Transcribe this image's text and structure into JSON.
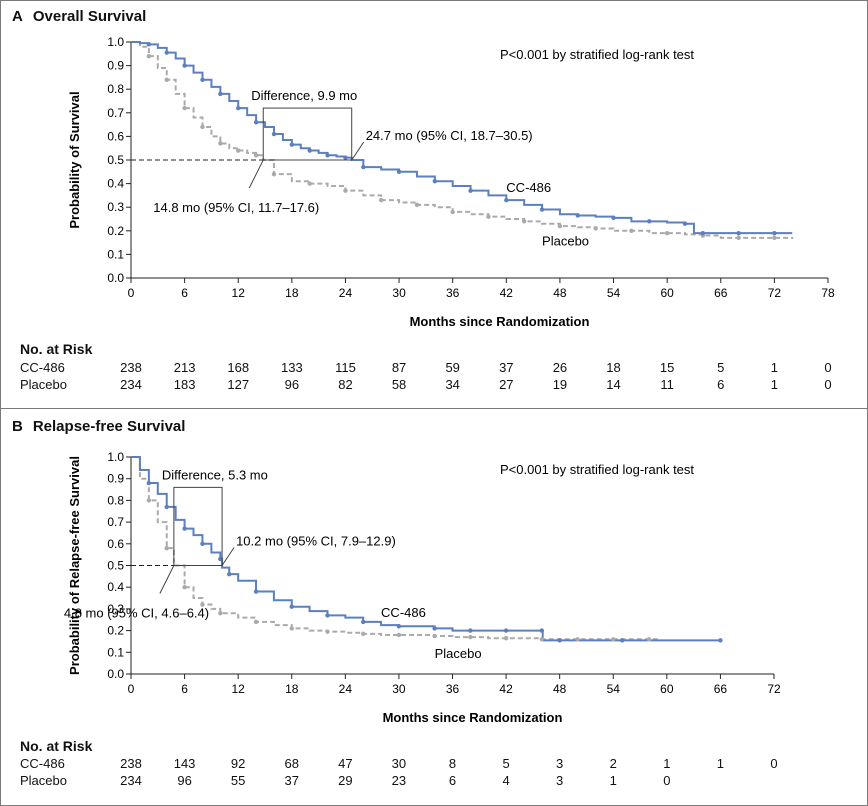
{
  "chart_data": [
    {
      "type": "line",
      "panel": "A",
      "title": "Overall Survival",
      "xlabel": "Months since Randomization",
      "ylabel": "Probability of Survival",
      "xlim": [
        0,
        78
      ],
      "ylim": [
        0,
        1.0
      ],
      "xticks": [
        0,
        6,
        12,
        18,
        24,
        30,
        36,
        42,
        48,
        54,
        60,
        66,
        72,
        78
      ],
      "yticks": [
        "0.0",
        "0.1",
        "0.2",
        "0.3",
        "0.4",
        "0.5",
        "0.6",
        "0.7",
        "0.8",
        "0.9",
        "1.0"
      ],
      "pvalue": "P<0.001 by stratified log-rank test",
      "difference_label": "Difference, 9.9 mo",
      "median_labels": {
        "cc486": "24.7 mo (95% CI, 18.7–30.5)",
        "placebo": "14.8 mo (95% CI, 11.7–17.6)"
      },
      "medians": {
        "cc486": 24.7,
        "placebo": 14.8
      },
      "series": [
        {
          "name": "CC-486",
          "color": "#5b7fbf",
          "style": "solid",
          "x": [
            0,
            1,
            2,
            3,
            4,
            5,
            6,
            7,
            8,
            9,
            10,
            11,
            12,
            13,
            14,
            15,
            16,
            17,
            18,
            19,
            20,
            21,
            22,
            23,
            24,
            24.7,
            26,
            28,
            30,
            32,
            34,
            36,
            38,
            40,
            42,
            44,
            46,
            48,
            50,
            52,
            54,
            56,
            58,
            60,
            62,
            63,
            64,
            66,
            68,
            70,
            72,
            74
          ],
          "values": [
            1.0,
            0.995,
            0.99,
            0.975,
            0.955,
            0.93,
            0.9,
            0.87,
            0.84,
            0.81,
            0.78,
            0.75,
            0.72,
            0.69,
            0.66,
            0.64,
            0.61,
            0.585,
            0.565,
            0.55,
            0.54,
            0.53,
            0.52,
            0.515,
            0.51,
            0.5,
            0.47,
            0.46,
            0.45,
            0.43,
            0.41,
            0.39,
            0.37,
            0.35,
            0.33,
            0.31,
            0.29,
            0.27,
            0.265,
            0.26,
            0.255,
            0.24,
            0.24,
            0.235,
            0.23,
            0.19,
            0.19,
            0.19,
            0.19,
            0.19,
            0.19,
            0.19
          ]
        },
        {
          "name": "Placebo",
          "color": "#aaaaaa",
          "style": "dashed",
          "x": [
            0,
            1,
            2,
            3,
            4,
            5,
            6,
            7,
            8,
            9,
            10,
            11,
            12,
            13,
            14,
            14.8,
            16,
            18,
            20,
            22,
            24,
            26,
            28,
            30,
            32,
            34,
            36,
            38,
            40,
            42,
            44,
            46,
            48,
            50,
            52,
            54,
            56,
            58,
            60,
            62,
            64,
            66,
            68,
            70,
            72,
            74
          ],
          "values": [
            1.0,
            0.98,
            0.94,
            0.89,
            0.84,
            0.78,
            0.72,
            0.68,
            0.64,
            0.6,
            0.57,
            0.55,
            0.54,
            0.53,
            0.52,
            0.5,
            0.44,
            0.41,
            0.4,
            0.39,
            0.37,
            0.35,
            0.33,
            0.32,
            0.31,
            0.3,
            0.28,
            0.27,
            0.26,
            0.25,
            0.24,
            0.23,
            0.22,
            0.215,
            0.21,
            0.2,
            0.2,
            0.19,
            0.19,
            0.185,
            0.18,
            0.17,
            0.17,
            0.17,
            0.17,
            0.165
          ]
        }
      ],
      "series_labels": {
        "cc486": "CC-486",
        "placebo": "Placebo"
      }
    },
    {
      "type": "line",
      "panel": "B",
      "title": "Relapse-free Survival",
      "xlabel": "Months since Randomization",
      "ylabel": "Probability of Relapse-free Survival",
      "xlim": [
        0,
        72
      ],
      "ylim": [
        0,
        1.0
      ],
      "xticks": [
        0,
        6,
        12,
        18,
        24,
        30,
        36,
        42,
        48,
        54,
        60,
        66,
        72
      ],
      "yticks": [
        "0.0",
        "0.1",
        "0.2",
        "0.3",
        "0.4",
        "0.5",
        "0.6",
        "0.7",
        "0.8",
        "0.9",
        "1.0"
      ],
      "pvalue": "P<0.001 by stratified log-rank test",
      "difference_label": "Difference, 5.3 mo",
      "median_labels": {
        "cc486": "10.2 mo (95% CI, 7.9–12.9)",
        "placebo": "4.8 mo (95% CI, 4.6–6.4)"
      },
      "medians": {
        "cc486": 10.2,
        "placebo": 4.8
      },
      "series": [
        {
          "name": "CC-486",
          "color": "#5b7fbf",
          "style": "solid",
          "x": [
            0,
            1,
            2,
            3,
            4,
            5,
            6,
            7,
            8,
            9,
            10,
            10.2,
            11,
            12,
            14,
            16,
            18,
            20,
            22,
            24,
            26,
            28,
            30,
            32,
            34,
            36,
            38,
            40,
            42,
            44,
            46,
            46.1,
            48,
            50,
            55,
            60,
            66
          ],
          "values": [
            1.0,
            0.94,
            0.88,
            0.83,
            0.77,
            0.71,
            0.67,
            0.64,
            0.6,
            0.56,
            0.53,
            0.49,
            0.46,
            0.43,
            0.38,
            0.34,
            0.31,
            0.29,
            0.27,
            0.26,
            0.24,
            0.225,
            0.22,
            0.22,
            0.21,
            0.2,
            0.2,
            0.2,
            0.2,
            0.2,
            0.2,
            0.155,
            0.155,
            0.155,
            0.155,
            0.155,
            0.155
          ]
        },
        {
          "name": "Placebo",
          "color": "#aaaaaa",
          "style": "dashed",
          "x": [
            0,
            1,
            2,
            3,
            4,
            4.8,
            6,
            7,
            8,
            9,
            10,
            12,
            14,
            16,
            18,
            20,
            22,
            24,
            26,
            28,
            30,
            32,
            34,
            36,
            38,
            40,
            42,
            44,
            46,
            48,
            50,
            52,
            54,
            56,
            58,
            59
          ],
          "values": [
            1.0,
            0.9,
            0.8,
            0.7,
            0.58,
            0.5,
            0.4,
            0.35,
            0.32,
            0.3,
            0.28,
            0.26,
            0.24,
            0.225,
            0.21,
            0.2,
            0.195,
            0.19,
            0.185,
            0.18,
            0.18,
            0.18,
            0.175,
            0.17,
            0.17,
            0.165,
            0.165,
            0.165,
            0.16,
            0.16,
            0.16,
            0.16,
            0.16,
            0.16,
            0.16,
            0.16
          ]
        }
      ],
      "series_labels": {
        "cc486": "CC-486",
        "placebo": "Placebo"
      }
    }
  ],
  "risk_tables": [
    {
      "heading": "No. at Risk",
      "times": [
        0,
        6,
        12,
        18,
        24,
        30,
        36,
        42,
        48,
        54,
        60,
        66,
        72,
        78
      ],
      "rows": [
        {
          "label": "CC-486",
          "values": [
            "238",
            "213",
            "168",
            "133",
            "115",
            "87",
            "59",
            "37",
            "26",
            "18",
            "15",
            "5",
            "1",
            "0"
          ]
        },
        {
          "label": "Placebo",
          "values": [
            "234",
            "183",
            "127",
            "96",
            "82",
            "58",
            "34",
            "27",
            "19",
            "14",
            "11",
            "6",
            "1",
            "0"
          ]
        }
      ]
    },
    {
      "heading": "No. at Risk",
      "times": [
        0,
        6,
        12,
        18,
        24,
        30,
        36,
        42,
        48,
        54,
        60,
        66,
        72
      ],
      "rows": [
        {
          "label": "CC-486",
          "values": [
            "238",
            "143",
            "92",
            "68",
            "47",
            "30",
            "8",
            "5",
            "3",
            "2",
            "1",
            "1",
            "0"
          ]
        },
        {
          "label": "Placebo",
          "values": [
            "234",
            "96",
            "55",
            "37",
            "29",
            "23",
            "6",
            "4",
            "3",
            "1",
            "0"
          ]
        }
      ]
    }
  ]
}
